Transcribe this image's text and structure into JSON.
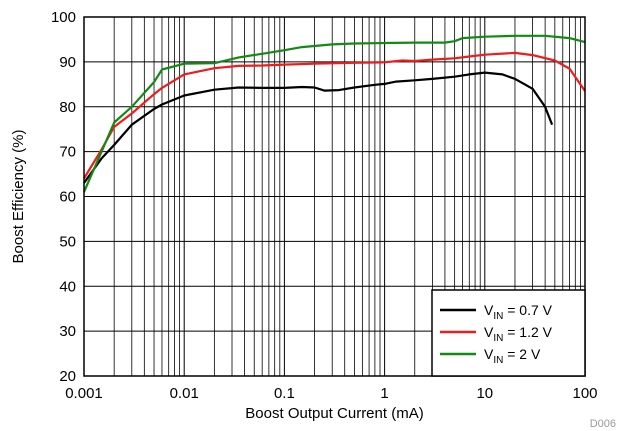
{
  "chart_data": {
    "type": "line",
    "title": "",
    "xlabel": "Boost Output Current (mA)",
    "ylabel": "Boost Efficiency (%)",
    "xscale": "log",
    "xlim": [
      0.001,
      100
    ],
    "ylim": [
      20,
      100
    ],
    "x_tick_labels": [
      "0.001",
      "0.01",
      "0.1",
      "1",
      "10",
      "100"
    ],
    "y_tick_labels": [
      "20",
      "30",
      "40",
      "50",
      "60",
      "70",
      "80",
      "90",
      "100"
    ],
    "grid": true,
    "legend_position": "bottom-right",
    "figure_tag": "D006",
    "series": [
      {
        "name": "V_IN = 0.7 V",
        "legend": {
          "prefix": "V",
          "sub": "IN",
          "suffix": " = 0.7 V"
        },
        "color": "#000000",
        "points": [
          [
            0.001,
            63
          ],
          [
            0.0015,
            68.5
          ],
          [
            0.002,
            71.5
          ],
          [
            0.003,
            76
          ],
          [
            0.005,
            79.5
          ],
          [
            0.006,
            80.5
          ],
          [
            0.01,
            82.5
          ],
          [
            0.02,
            83.8
          ],
          [
            0.035,
            84.3
          ],
          [
            0.06,
            84.2
          ],
          [
            0.1,
            84.2
          ],
          [
            0.15,
            84.4
          ],
          [
            0.2,
            84.3
          ],
          [
            0.25,
            83.6
          ],
          [
            0.35,
            83.7
          ],
          [
            0.5,
            84.3
          ],
          [
            0.8,
            84.9
          ],
          [
            1,
            85.1
          ],
          [
            1.3,
            85.6
          ],
          [
            2,
            85.9
          ],
          [
            3,
            86.2
          ],
          [
            5,
            86.7
          ],
          [
            7,
            87.2
          ],
          [
            10,
            87.6
          ],
          [
            15,
            87.2
          ],
          [
            20,
            86.2
          ],
          [
            25,
            85
          ],
          [
            30,
            84
          ],
          [
            40,
            80
          ],
          [
            47,
            76
          ]
        ]
      },
      {
        "name": "V_IN = 1.2 V",
        "legend": {
          "prefix": "V",
          "sub": "IN",
          "suffix": " = 1.2 V"
        },
        "color": "#ee1c1c",
        "points": [
          [
            0.001,
            64
          ],
          [
            0.0015,
            70.5
          ],
          [
            0.002,
            75.5
          ],
          [
            0.003,
            78.5
          ],
          [
            0.005,
            82.8
          ],
          [
            0.006,
            84.2
          ],
          [
            0.01,
            87.2
          ],
          [
            0.02,
            88.6
          ],
          [
            0.035,
            89.1
          ],
          [
            0.06,
            89.2
          ],
          [
            0.1,
            89.4
          ],
          [
            0.2,
            89.6
          ],
          [
            0.5,
            89.8
          ],
          [
            1,
            89.9
          ],
          [
            1.5,
            90.3
          ],
          [
            2,
            90.2
          ],
          [
            3,
            90.5
          ],
          [
            5,
            90.8
          ],
          [
            7,
            91.2
          ],
          [
            10,
            91.6
          ],
          [
            20,
            92
          ],
          [
            30,
            91.5
          ],
          [
            50,
            90.3
          ],
          [
            70,
            88.5
          ],
          [
            100,
            83.5
          ]
        ]
      },
      {
        "name": "V_IN = 2 V",
        "legend": {
          "prefix": "V",
          "sub": "IN",
          "suffix": " = 2 V"
        },
        "color": "#138a13",
        "points": [
          [
            0.001,
            61
          ],
          [
            0.0015,
            70
          ],
          [
            0.002,
            76.5
          ],
          [
            0.003,
            80
          ],
          [
            0.005,
            85.5
          ],
          [
            0.006,
            88.3
          ],
          [
            0.01,
            89.6
          ],
          [
            0.02,
            89.7
          ],
          [
            0.035,
            91
          ],
          [
            0.06,
            91.8
          ],
          [
            0.1,
            92.6
          ],
          [
            0.15,
            93.3
          ],
          [
            0.3,
            93.9
          ],
          [
            0.5,
            94.1
          ],
          [
            1,
            94.2
          ],
          [
            2,
            94.3
          ],
          [
            4,
            94.3
          ],
          [
            5,
            94.6
          ],
          [
            6,
            95.3
          ],
          [
            10,
            95.6
          ],
          [
            20,
            95.8
          ],
          [
            40,
            95.8
          ],
          [
            70,
            95.3
          ],
          [
            100,
            94.4
          ]
        ]
      }
    ]
  }
}
